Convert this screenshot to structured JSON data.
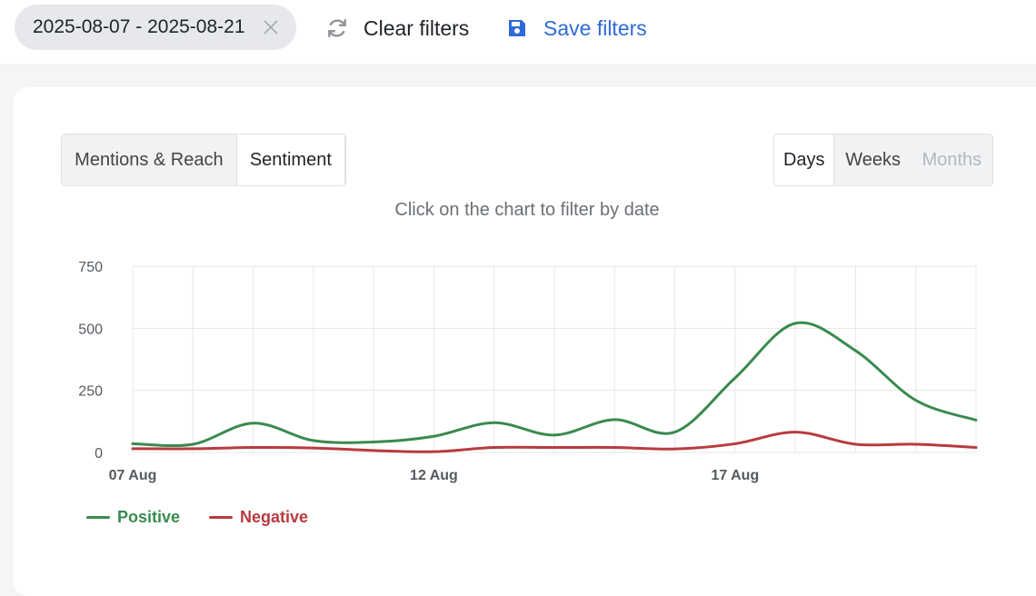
{
  "toolbar": {
    "date_range": "2025-08-07 - 2025-08-21",
    "clear_label": "Clear filters",
    "save_label": "Save filters"
  },
  "tabs": [
    {
      "label": "Mentions & Reach",
      "active": false
    },
    {
      "label": "Sentiment",
      "active": true
    }
  ],
  "granularity": [
    {
      "label": "Days",
      "active": true,
      "disabled": false
    },
    {
      "label": "Weeks",
      "active": false,
      "disabled": false
    },
    {
      "label": "Months",
      "active": false,
      "disabled": true
    }
  ],
  "chart_hint": "Click on the chart to filter by date",
  "colors": {
    "positive": "#3a8a4f",
    "negative": "#b83b3f",
    "grid": "#e6e7ea",
    "axis_text": "#555a60",
    "accent": "#2f6bd8"
  },
  "chart_data": {
    "type": "line",
    "x": [
      "2025-08-07",
      "2025-08-08",
      "2025-08-09",
      "2025-08-10",
      "2025-08-11",
      "2025-08-12",
      "2025-08-13",
      "2025-08-14",
      "2025-08-15",
      "2025-08-16",
      "2025-08-17",
      "2025-08-18",
      "2025-08-19",
      "2025-08-20",
      "2025-08-21"
    ],
    "x_ticks": [
      {
        "index": 0,
        "label": "07 Aug"
      },
      {
        "index": 5,
        "label": "12 Aug"
      },
      {
        "index": 10,
        "label": "17 Aug"
      }
    ],
    "ylim": [
      0,
      750
    ],
    "y_ticks": [
      0,
      250,
      500,
      750
    ],
    "grid": true,
    "legend": "bottom-left",
    "series": [
      {
        "name": "Positive",
        "color_key": "positive",
        "values": [
          35,
          33,
          118,
          48,
          42,
          65,
          120,
          70,
          132,
          82,
          300,
          520,
          410,
          210,
          130
        ]
      },
      {
        "name": "Negative",
        "color_key": "negative",
        "values": [
          15,
          15,
          20,
          18,
          8,
          3,
          20,
          20,
          20,
          14,
          35,
          82,
          33,
          33,
          20
        ]
      }
    ]
  }
}
